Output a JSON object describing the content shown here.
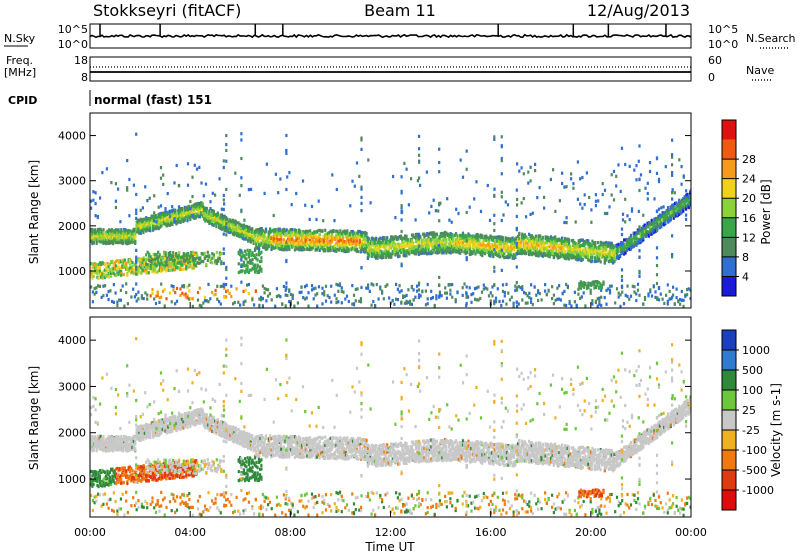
{
  "header": {
    "station": "Stokkseyri (fitACF)",
    "beam": "Beam 11",
    "date": "12/Aug/2013"
  },
  "top_panels": {
    "nsky_label": "N.Sky",
    "nsky_ticks": [
      "10^5",
      "10^0"
    ],
    "nsearch_label": "N.Search",
    "nsearch_ticks": [
      "10^5",
      "10^0"
    ],
    "freq_label": "Freq.",
    "freq_unit": "[MHz]",
    "freq_ticks": [
      "18",
      "8"
    ],
    "nave_label": "Nave",
    "nave_ticks": [
      "60",
      "0"
    ],
    "cpid_label": "CPID",
    "cpid_value": "normal (fast) 151"
  },
  "chart_data": [
    {
      "type": "heatmap",
      "name": "power",
      "ylabel": "Slant Range [km]",
      "ylim": [
        180,
        4500
      ],
      "yticks": [
        1000,
        2000,
        3000,
        4000
      ],
      "xlim": [
        0,
        24
      ],
      "colorbar": {
        "label": "Power [dB]",
        "ticks": [
          "4",
          "8",
          "12",
          "16",
          "20",
          "24",
          "28"
        ],
        "colors": [
          "#1a1adb",
          "#2f6fd0",
          "#4f8a5a",
          "#3aa64a",
          "#8bd13a",
          "#f0d21a",
          "#f59a1a",
          "#ef5a12",
          "#e01010"
        ]
      },
      "features": [
        {
          "t0": 0.0,
          "t1": 2.0,
          "r": 1800,
          "power": 22
        },
        {
          "t0": 0.0,
          "t1": 1.0,
          "r": 950,
          "power": 24
        },
        {
          "t0": 2.0,
          "t1": 6.5,
          "r": 550,
          "power": 26
        },
        {
          "t0": 7.0,
          "t1": 11.0,
          "r": 1700,
          "power": 27
        },
        {
          "t0": 11.0,
          "t1": 17.0,
          "r": 1600,
          "power": 20
        },
        {
          "t0": 17.0,
          "t1": 21.0,
          "r": 1700,
          "power": 18
        },
        {
          "t0": 21.0,
          "t1": 24.0,
          "r": 2200,
          "power": 12
        }
      ]
    },
    {
      "type": "heatmap",
      "name": "velocity",
      "ylabel": "Slant Range [km]",
      "ylim": [
        180,
        4500
      ],
      "yticks": [
        1000,
        2000,
        3000,
        4000
      ],
      "xlim": [
        0,
        24
      ],
      "xlabel": "Time UT",
      "xticks": [
        "00:00",
        "04:00",
        "08:00",
        "12:00",
        "16:00",
        "20:00",
        "00:00"
      ],
      "colorbar": {
        "label": "Velocity [m s-1]",
        "ticks": [
          "1000",
          "500",
          "100",
          "25",
          "-25",
          "-100",
          "-500",
          "-1000"
        ],
        "colors": [
          "#1a3fbf",
          "#2f7bd0",
          "#2e8a3a",
          "#6cc83a",
          "#c8c8c8",
          "#f0b020",
          "#f07a10",
          "#e03a10",
          "#e00c0c"
        ]
      }
    }
  ]
}
